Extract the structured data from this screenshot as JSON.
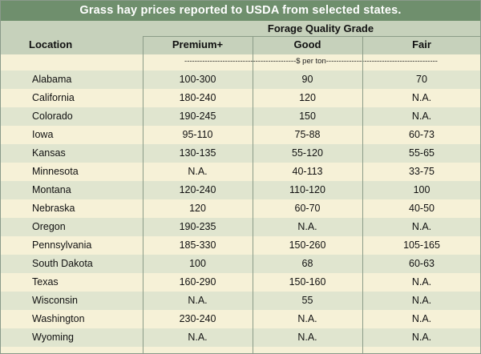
{
  "title": "Grass hay prices reported to USDA from selected states.",
  "header": {
    "location": "Location",
    "grade_group": "Forage Quality Grade",
    "premium": "Premium+",
    "good": "Good",
    "fair": "Fair"
  },
  "units": "--------------------------------------------$ per ton--------------------------------------------",
  "rows": [
    {
      "location": "Alabama",
      "premium": "100-300",
      "good": "90",
      "fair": "70"
    },
    {
      "location": "California",
      "premium": "180-240",
      "good": "120",
      "fair": "N.A."
    },
    {
      "location": "Colorado",
      "premium": "190-245",
      "good": "150",
      "fair": "N.A."
    },
    {
      "location": "Iowa",
      "premium": "95-110",
      "good": "75-88",
      "fair": "60-73"
    },
    {
      "location": "Kansas",
      "premium": "130-135",
      "good": "55-120",
      "fair": "55-65"
    },
    {
      "location": "Minnesota",
      "premium": "N.A.",
      "good": "40-113",
      "fair": "33-75"
    },
    {
      "location": "Montana",
      "premium": "120-240",
      "good": "110-120",
      "fair": "100"
    },
    {
      "location": "Nebraska",
      "premium": "120",
      "good": "60-70",
      "fair": "40-50"
    },
    {
      "location": "Oregon",
      "premium": "190-235",
      "good": "N.A.",
      "fair": "N.A."
    },
    {
      "location": "Pennsylvania",
      "premium": "185-330",
      "good": "150-260",
      "fair": "105-165"
    },
    {
      "location": "South Dakota",
      "premium": "100",
      "good": "68",
      "fair": "60-63"
    },
    {
      "location": "Texas",
      "premium": "160-290",
      "good": "150-160",
      "fair": "N.A."
    },
    {
      "location": "Wisconsin",
      "premium": "N.A.",
      "good": "55",
      "fair": "N.A."
    },
    {
      "location": "Washington",
      "premium": "230-240",
      "good": "N.A.",
      "fair": "N.A."
    },
    {
      "location": "Wyoming",
      "premium": "N.A.",
      "good": "N.A.",
      "fair": "N.A."
    }
  ]
}
